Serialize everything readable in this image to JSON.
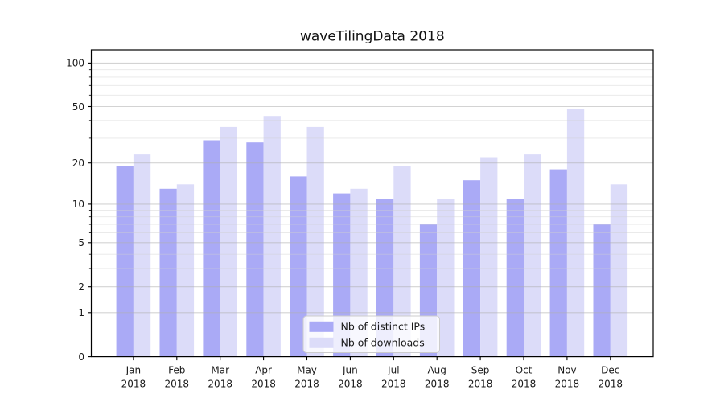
{
  "chart_data": {
    "type": "bar",
    "title": "waveTilingData 2018",
    "categories": [
      "Jan",
      "Feb",
      "Mar",
      "Apr",
      "May",
      "Jun",
      "Jul",
      "Aug",
      "Sep",
      "Oct",
      "Nov",
      "Dec"
    ],
    "category_year": "2018",
    "series": [
      {
        "name": "Nb of distinct IPs",
        "color": "#aaaaf6",
        "values": [
          19,
          13,
          29,
          28,
          16,
          12,
          11,
          7,
          15,
          11,
          18,
          7
        ]
      },
      {
        "name": "Nb of downloads",
        "color": "#dcdcf9",
        "values": [
          23,
          14,
          36,
          43,
          36,
          13,
          19,
          11,
          22,
          23,
          48,
          14
        ]
      }
    ],
    "y_scale": "log1p",
    "y_major_ticks": [
      0,
      1,
      2,
      5,
      10,
      20,
      50,
      100
    ],
    "y_minor_ticks": [
      3,
      4,
      6,
      7,
      8,
      9,
      30,
      40,
      60,
      70,
      80,
      90
    ],
    "ylim": [
      0,
      122
    ],
    "grid": true,
    "grid_on_top": true,
    "legend_position": "lower center",
    "style": {
      "background": "#ffffff",
      "axis_color": "#000000",
      "text_color": "#1a1a1a",
      "grid_major_color": "#b0b0b0",
      "grid_minor_color": "#d0d0d0",
      "legend_bg": "#ffffff",
      "legend_border": "#cccccc"
    }
  }
}
